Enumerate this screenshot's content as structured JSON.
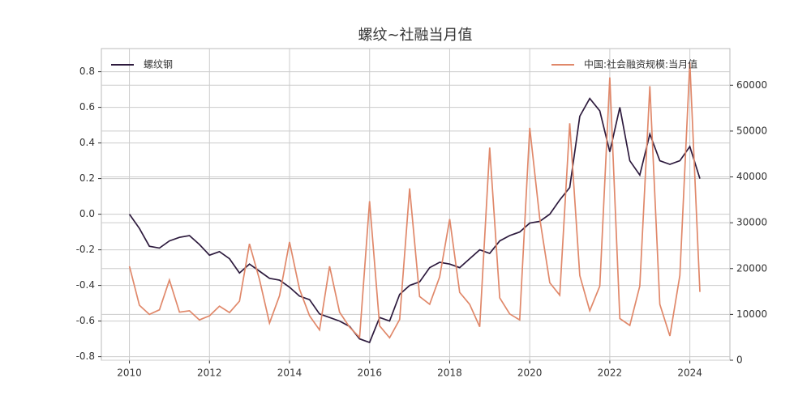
{
  "chart_data": {
    "type": "line",
    "title": "螺纹~社融当月值",
    "x": [
      2010,
      2010.25,
      2010.5,
      2010.75,
      2011,
      2011.25,
      2011.5,
      2011.75,
      2012,
      2012.25,
      2012.5,
      2012.75,
      2013,
      2013.25,
      2013.5,
      2013.75,
      2014,
      2014.25,
      2014.5,
      2014.75,
      2015,
      2015.25,
      2015.5,
      2015.75,
      2016,
      2016.25,
      2016.5,
      2016.75,
      2017,
      2017.25,
      2017.5,
      2017.75,
      2018,
      2018.25,
      2018.5,
      2018.75,
      2019,
      2019.25,
      2019.5,
      2019.75,
      2020,
      2020.25,
      2020.5,
      2020.75,
      2021,
      2021.25,
      2021.5,
      2021.75,
      2022,
      2022.25,
      2022.5,
      2022.75,
      2023,
      2023.25,
      2023.5,
      2023.75,
      2024,
      2024.25
    ],
    "series": [
      {
        "name": "螺纹钢",
        "color": "#2d1a3d",
        "legend": "upper left",
        "values": [
          0.0,
          -0.08,
          -0.18,
          -0.19,
          -0.15,
          -0.13,
          -0.12,
          -0.17,
          -0.23,
          -0.21,
          -0.25,
          -0.33,
          -0.28,
          -0.32,
          -0.36,
          -0.37,
          -0.41,
          -0.46,
          -0.48,
          -0.56,
          -0.58,
          -0.6,
          -0.63,
          -0.7,
          -0.72,
          -0.58,
          -0.6,
          -0.45,
          -0.4,
          -0.38,
          -0.3,
          -0.27,
          -0.28,
          -0.3,
          -0.25,
          -0.2,
          -0.22,
          -0.15,
          -0.12,
          -0.1,
          -0.05,
          -0.04,
          0.0,
          0.08,
          0.15,
          0.55,
          0.65,
          0.58,
          0.35,
          0.6,
          0.3,
          0.22,
          0.45,
          0.3,
          0.28,
          0.3,
          0.38,
          0.2
        ]
      },
      {
        "name": "中国:社会融资规模:当月值",
        "color": "#e0886a",
        "axis": "y2",
        "legend": "upper right",
        "values": [
          20500,
          12000,
          10000,
          11000,
          17500,
          10500,
          10800,
          8800,
          9700,
          11800,
          10400,
          12900,
          25400,
          17600,
          8100,
          14100,
          25800,
          15500,
          9700,
          6600,
          20500,
          10500,
          7200,
          5000,
          34700,
          7500,
          4900,
          8900,
          37500,
          13900,
          12200,
          18200,
          30800,
          14800,
          12200,
          7300,
          46400,
          13600,
          10100,
          8800,
          50700,
          31000,
          16900,
          14200,
          51700,
          18500,
          10800,
          16200,
          61700,
          9100,
          7600,
          16200,
          59800,
          12200,
          5300,
          18500,
          65000,
          14900
        ]
      }
    ],
    "xlim": [
      2009.3,
      2025
    ],
    "xticks": [
      2010,
      2012,
      2014,
      2016,
      2018,
      2020,
      2022,
      2024
    ],
    "ylim": [
      -0.82,
      0.93
    ],
    "yticks": [
      -0.8,
      -0.6,
      -0.4,
      -0.2,
      {
        "value": 0,
        "label": "0.0"
      },
      0.2,
      0.4,
      0.6,
      0.8
    ],
    "y2lim": [
      0,
      68000
    ],
    "y2ticks": [
      0,
      10000,
      20000,
      30000,
      40000,
      50000,
      60000
    ],
    "grid": true
  }
}
